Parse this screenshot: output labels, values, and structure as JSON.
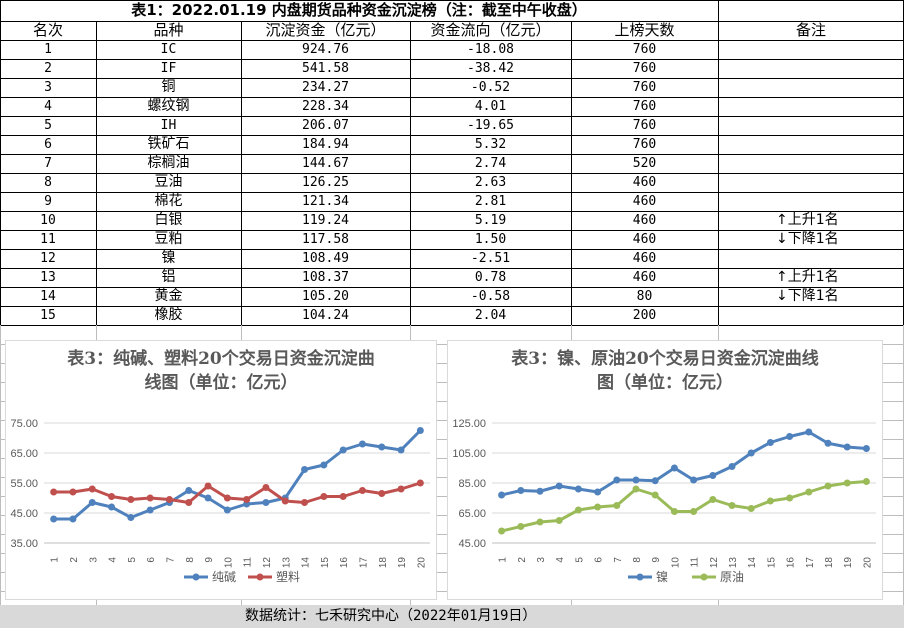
{
  "table": {
    "title": "表1：2022.01.19 内盘期货品种资金沉淀榜（注：截至中午收盘）",
    "headers": [
      "名次",
      "品种",
      "沉淀资金（亿元）",
      "资金流向（亿元）",
      "上榜天数",
      "备注"
    ],
    "rows": [
      {
        "rank": "1",
        "name": "IC",
        "funds": "924.76",
        "flow": "-18.08",
        "days": "760",
        "note": ""
      },
      {
        "rank": "2",
        "name": "IF",
        "funds": "541.58",
        "flow": "-38.42",
        "days": "760",
        "note": ""
      },
      {
        "rank": "3",
        "name": "铜",
        "funds": "234.27",
        "flow": "-0.52",
        "days": "760",
        "note": ""
      },
      {
        "rank": "4",
        "name": "螺纹钢",
        "funds": "228.34",
        "flow": "4.01",
        "days": "760",
        "note": ""
      },
      {
        "rank": "5",
        "name": "IH",
        "funds": "206.07",
        "flow": "-19.65",
        "days": "760",
        "note": ""
      },
      {
        "rank": "6",
        "name": "铁矿石",
        "funds": "184.94",
        "flow": "5.32",
        "days": "760",
        "note": ""
      },
      {
        "rank": "7",
        "name": "棕榈油",
        "funds": "144.67",
        "flow": "2.74",
        "days": "520",
        "note": ""
      },
      {
        "rank": "8",
        "name": "豆油",
        "funds": "126.25",
        "flow": "2.63",
        "days": "460",
        "note": ""
      },
      {
        "rank": "9",
        "name": "棉花",
        "funds": "121.34",
        "flow": "2.81",
        "days": "460",
        "note": ""
      },
      {
        "rank": "10",
        "name": "白银",
        "funds": "119.24",
        "flow": "5.19",
        "days": "460",
        "note": "上升1名",
        "dir": "up"
      },
      {
        "rank": "11",
        "name": "豆粕",
        "funds": "117.58",
        "flow": "1.50",
        "days": "460",
        "note": "下降1名",
        "dir": "down"
      },
      {
        "rank": "12",
        "name": "镍",
        "funds": "108.49",
        "flow": "-2.51",
        "days": "460",
        "note": ""
      },
      {
        "rank": "13",
        "name": "铝",
        "funds": "108.37",
        "flow": "0.78",
        "days": "460",
        "note": "上升1名",
        "dir": "up"
      },
      {
        "rank": "14",
        "name": "黄金",
        "funds": "105.20",
        "flow": "-0.58",
        "days": "80",
        "note": "下降1名",
        "dir": "down"
      },
      {
        "rank": "15",
        "name": "橡胶",
        "funds": "104.24",
        "flow": "2.04",
        "days": "200",
        "note": ""
      }
    ]
  },
  "footer": "数据统计：七禾研究中心（2022年01月19日）",
  "chart_data": [
    {
      "type": "line",
      "title": "表3：纯碱、塑料20个交易日资金沉淀曲线图（单位：亿元）",
      "title_lines": [
        "表3：纯碱、塑料20个交易日资金沉淀曲",
        "线图（单位：亿元）"
      ],
      "categories": [
        "1",
        "2",
        "3",
        "4",
        "5",
        "6",
        "7",
        "8",
        "9",
        "10",
        "11",
        "12",
        "13",
        "14",
        "15",
        "16",
        "17",
        "18",
        "19",
        "20"
      ],
      "ylim": [
        35,
        75
      ],
      "yticks": [
        "35.00",
        "45.00",
        "55.00",
        "65.00",
        "75.00"
      ],
      "ytick_values": [
        35,
        45,
        55,
        65,
        75
      ],
      "legend_position": "bottom",
      "series": [
        {
          "name": "纯碱",
          "color": "#4f81bd",
          "values": [
            43,
            43,
            48.5,
            47,
            43.5,
            46,
            48.5,
            52.5,
            50,
            46,
            48,
            48.5,
            50,
            59.5,
            61,
            66,
            68,
            67,
            66,
            72.5
          ]
        },
        {
          "name": "塑料",
          "color": "#c0504d",
          "values": [
            52,
            52,
            53,
            50.5,
            49.5,
            50,
            49.5,
            48.5,
            54,
            50,
            49.5,
            53.5,
            49,
            48.5,
            50.5,
            50.5,
            52.5,
            51.5,
            53,
            55
          ]
        }
      ]
    },
    {
      "type": "line",
      "title": "表3：镍、原油20个交易日资金沉淀曲线图（单位：亿元）",
      "title_lines": [
        "表3：镍、原油20个交易日资金沉淀曲线",
        "图（单位：亿元）"
      ],
      "categories": [
        "1",
        "2",
        "3",
        "4",
        "5",
        "6",
        "7",
        "8",
        "9",
        "10",
        "11",
        "12",
        "13",
        "14",
        "15",
        "16",
        "17",
        "18",
        "19",
        "20"
      ],
      "ylim": [
        45,
        125
      ],
      "yticks": [
        "45.00",
        "65.00",
        "85.00",
        "105.00",
        "125.00"
      ],
      "ytick_values": [
        45,
        65,
        85,
        105,
        125
      ],
      "legend_position": "bottom",
      "series": [
        {
          "name": "镍",
          "color": "#4f81bd",
          "values": [
            77,
            80,
            79.5,
            83,
            81,
            79,
            87,
            87,
            86.5,
            95,
            87,
            90,
            96,
            105,
            112,
            116,
            119,
            111.5,
            109,
            108
          ]
        },
        {
          "name": "原油",
          "color": "#9bbb59",
          "values": [
            53,
            56,
            59,
            60,
            67,
            69,
            70,
            81,
            77,
            66,
            66,
            74,
            70,
            68,
            73,
            75,
            79,
            83,
            85,
            86
          ]
        }
      ]
    }
  ]
}
